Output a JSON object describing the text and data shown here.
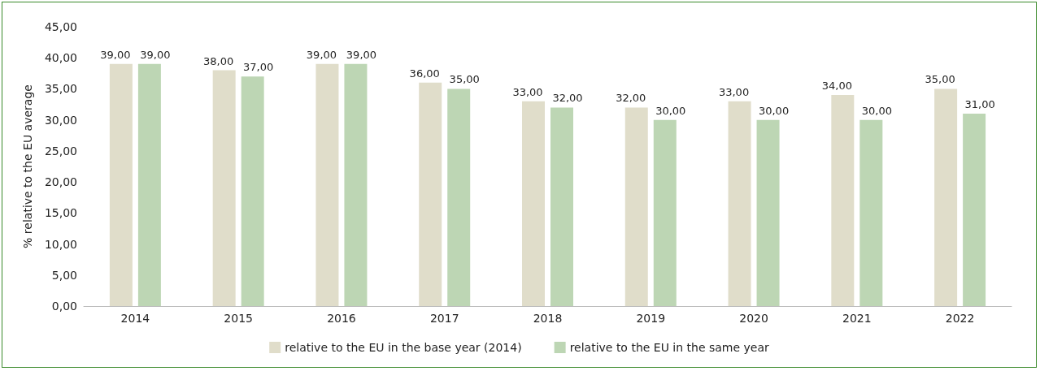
{
  "chart_data": {
    "type": "bar",
    "ylabel": "% relative to the EU average",
    "categories": [
      "2014",
      "2015",
      "2016",
      "2017",
      "2018",
      "2019",
      "2020",
      "2021",
      "2022"
    ],
    "series": [
      {
        "name": "relative to the EU in the base year (2014)",
        "color": "#e0ddca",
        "values": [
          39,
          38,
          39,
          36,
          33,
          32,
          33,
          34,
          35
        ],
        "value_labels": [
          "39,00",
          "38,00",
          "39,00",
          "36,00",
          "33,00",
          "32,00",
          "33,00",
          "34,00",
          "35,00"
        ]
      },
      {
        "name": "relative to the EU in the same year",
        "color": "#bdd6b4",
        "values": [
          39,
          37,
          39,
          35,
          32,
          30,
          30,
          30,
          31
        ],
        "value_labels": [
          "39,00",
          "37,00",
          "39,00",
          "35,00",
          "32,00",
          "30,00",
          "30,00",
          "30,00",
          "31,00"
        ]
      }
    ],
    "ylim": [
      0,
      45
    ],
    "yticks": [
      {
        "value": 0,
        "label": "0,00"
      },
      {
        "value": 5,
        "label": "5,00"
      },
      {
        "value": 10,
        "label": "10,00"
      },
      {
        "value": 15,
        "label": "15,00"
      },
      {
        "value": 20,
        "label": "20,00"
      },
      {
        "value": 25,
        "label": "25,00"
      },
      {
        "value": 30,
        "label": "30,00"
      },
      {
        "value": 35,
        "label": "35,00"
      },
      {
        "value": 40,
        "label": "40,00"
      },
      {
        "value": 45,
        "label": "45,00"
      }
    ],
    "grid": false,
    "legend": "bottom"
  }
}
